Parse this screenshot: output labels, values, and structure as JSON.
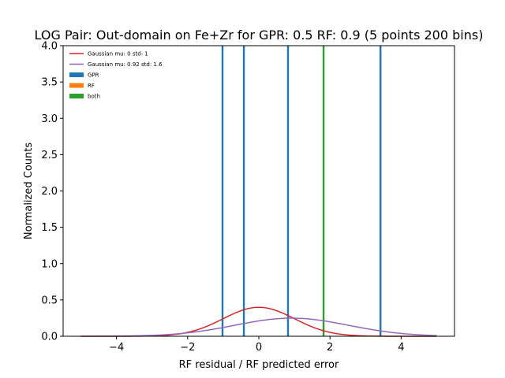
{
  "chart_data": {
    "type": "histogram",
    "title": "LOG Pair: Out-domain on Fe+Zr for GPR: 0.5 RF: 0.9 (5 points 200 bins)",
    "xlabel": "RF residual / RF predicted error",
    "ylabel": "Normalized Counts",
    "xlim": [
      -5.5,
      5.5
    ],
    "ylim": [
      0,
      4
    ],
    "xticks": [
      -4,
      -2,
      0,
      2,
      4
    ],
    "yticks": [
      0.0,
      0.5,
      1.0,
      1.5,
      2.0,
      2.5,
      3.0,
      3.5,
      4.0
    ],
    "xtick_labels": [
      "−4",
      "−2",
      "0",
      "2",
      "4"
    ],
    "ytick_labels": [
      "0.0",
      "0.5",
      "1.0",
      "1.5",
      "2.0",
      "2.5",
      "3.0",
      "3.5",
      "4.0"
    ],
    "grid": false,
    "legend_position": "top-left",
    "curves": [
      {
        "name": "Gaussian mu: 0 std: 1",
        "color": "#d62728",
        "mu": 0,
        "std": 1,
        "x_range": [
          -5,
          5
        ]
      },
      {
        "name": "Gaussian mu: 0.92 std: 1.6",
        "color": "#9467bd",
        "mu": 0.92,
        "std": 1.6,
        "x_range": [
          -5,
          5
        ]
      }
    ],
    "bars": [
      {
        "series": "GPR",
        "x": -1.02,
        "height": 4.0
      },
      {
        "series": "GPR",
        "x": -0.42,
        "height": 4.0
      },
      {
        "series": "GPR",
        "x": 0.82,
        "height": 4.0
      },
      {
        "series": "GPR",
        "x": 3.42,
        "height": 4.0
      },
      {
        "series": "both",
        "x": 1.82,
        "height": 4.0
      }
    ],
    "series": [
      {
        "name": "GPR",
        "color": "#1f77b4"
      },
      {
        "name": "RF",
        "color": "#ff7f0e"
      },
      {
        "name": "both",
        "color": "#2ca02c"
      }
    ]
  }
}
